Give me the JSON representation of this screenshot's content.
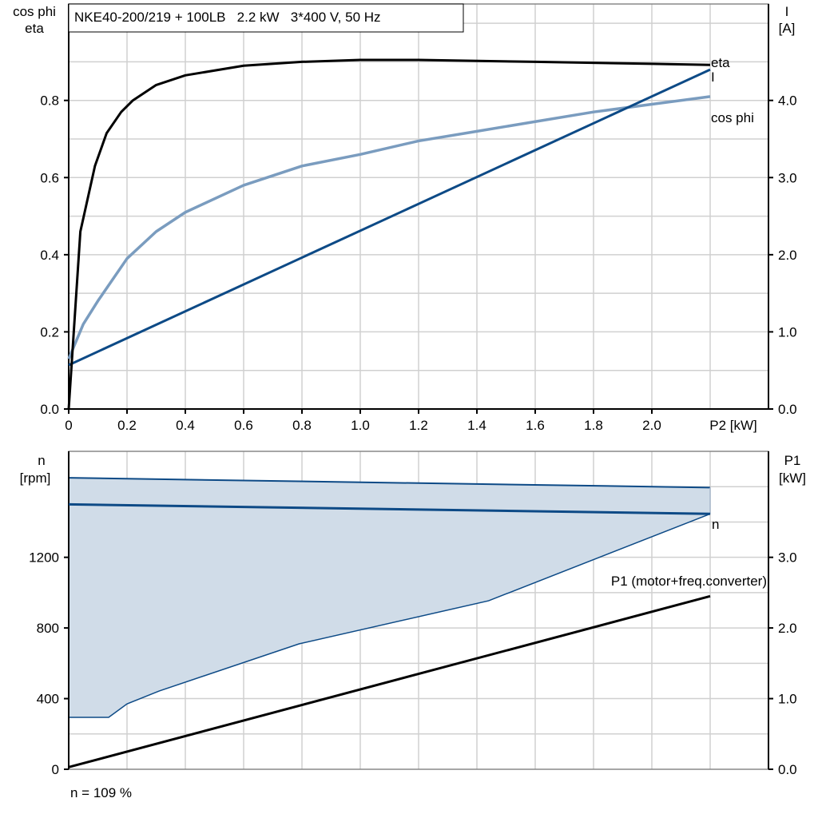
{
  "chart_data": [
    {
      "type": "line",
      "title": "NKE40-200/219 + 100LB   2.2 kW   3*400 V, 50 Hz",
      "xlabel": "P2 [kW]",
      "ylabel_left": [
        "cos phi",
        "eta"
      ],
      "ylabel_right": [
        "I",
        "[A]"
      ],
      "xlim": [
        0,
        2.4
      ],
      "ylim_left": [
        0,
        1.05
      ],
      "ylim_right": [
        0,
        5.25
      ],
      "x_ticks": [
        "0",
        "0.2",
        "0.4",
        "0.6",
        "0.8",
        "1.0",
        "1.2",
        "1.4",
        "1.6",
        "1.8",
        "2.0"
      ],
      "y_ticks_left": [
        "0.0",
        "0.2",
        "0.4",
        "0.6",
        "0.8"
      ],
      "y_ticks_right": [
        "0.0",
        "1.0",
        "2.0",
        "3.0",
        "4.0"
      ],
      "grid": true,
      "series": [
        {
          "name": "eta",
          "axis": "left",
          "color": "#000000",
          "x": [
            0,
            0.04,
            0.09,
            0.13,
            0.18,
            0.22,
            0.3,
            0.4,
            0.6,
            0.8,
            1.0,
            1.2,
            1.6,
            2.0,
            2.2
          ],
          "y": [
            0,
            0.46,
            0.63,
            0.715,
            0.77,
            0.8,
            0.84,
            0.865,
            0.89,
            0.9,
            0.905,
            0.905,
            0.9,
            0.895,
            0.892
          ]
        },
        {
          "name": "cos phi",
          "axis": "left",
          "color": "#7a9cbf",
          "x": [
            0,
            0.05,
            0.1,
            0.2,
            0.3,
            0.4,
            0.6,
            0.8,
            1.0,
            1.2,
            1.4,
            1.6,
            1.8,
            2.0,
            2.2
          ],
          "y": [
            0.13,
            0.22,
            0.28,
            0.39,
            0.46,
            0.51,
            0.58,
            0.63,
            0.66,
            0.695,
            0.72,
            0.745,
            0.77,
            0.79,
            0.81
          ]
        },
        {
          "name": "I",
          "axis": "right",
          "color": "#0d4a86",
          "x": [
            0,
            2.2
          ],
          "y": [
            0.57,
            4.4
          ]
        }
      ]
    },
    {
      "type": "line",
      "xlim": [
        0,
        2.4
      ],
      "ylabel_left": [
        "n",
        "[rpm]"
      ],
      "ylabel_right": [
        "P1",
        "[kW]"
      ],
      "ylim_left": [
        0,
        1800
      ],
      "ylim_right": [
        0,
        4.5
      ],
      "y_ticks_left": [
        "0",
        "400",
        "800",
        "1200"
      ],
      "y_ticks_right": [
        "0.0",
        "1.0",
        "2.0",
        "3.0"
      ],
      "grid": true,
      "band": {
        "color": "#d0dce8",
        "edge": "#0d4a86",
        "upper": {
          "x": [
            0,
            2.2
          ],
          "y": [
            1650,
            1595
          ]
        },
        "lower": {
          "x": [
            0,
            0.137,
            0.2,
            0.31,
            0.79,
            1.44,
            2.2
          ],
          "y": [
            294,
            294,
            370,
            443,
            710,
            954,
            1446
          ]
        }
      },
      "series": [
        {
          "name": "n",
          "axis": "left",
          "color": "#0d4a86",
          "x": [
            0,
            2.2
          ],
          "y": [
            1500,
            1446
          ]
        },
        {
          "name": "P1 (motor+freq.converter)",
          "axis": "right",
          "color": "#000000",
          "x": [
            0,
            2.2
          ],
          "y": [
            0.03,
            2.45
          ]
        }
      ],
      "footnote": "n = 109 %"
    }
  ]
}
